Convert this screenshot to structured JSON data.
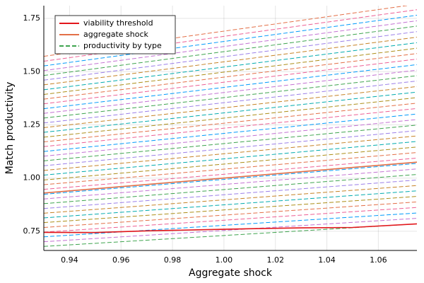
{
  "chart_data": {
    "type": "line",
    "x_label": "Aggregate shock",
    "y_label": "Match productivity",
    "xlim": [
      0.93,
      1.075
    ],
    "ylim": [
      0.66,
      1.81
    ],
    "xticks": [
      0.94,
      0.96,
      0.98,
      {
        "value": 1,
        "label": "1.00"
      },
      1.02,
      1.04,
      1.06
    ],
    "yticks": [
      0.75,
      {
        "value": 1,
        "label": "1.00"
      },
      1.25,
      {
        "value": 1.5,
        "label": "1.50"
      },
      1.75
    ],
    "grid": true,
    "legend": "top-left",
    "series": [
      {
        "name": "viability threshold",
        "color": "#e2161b",
        "style": "solid",
        "x": [
          0.93,
          0.95,
          0.97,
          0.99,
          1.01,
          1.03,
          1.05,
          1.075
        ],
        "values": [
          0.745,
          0.744,
          0.752,
          0.757,
          0.762,
          0.766,
          0.768,
          0.785
        ]
      },
      {
        "name": "aggregate shock",
        "color": "#e36f47",
        "style": "solid",
        "x": [
          0.93,
          1.075
        ],
        "values": [
          0.93,
          1.075
        ]
      },
      {
        "name": "productivity by type",
        "color": "#3ea44e",
        "style": "dashed",
        "colors": [
          "#3ea44e",
          "#c371d2",
          "#009afa",
          "#ed5e93",
          "#e36f47",
          "#ac8e18",
          "#00aaae",
          "#c68225",
          "#9b7fe8"
        ],
        "x": [
          0.93,
          1.075
        ],
        "lines": [
          [
            0.679,
            0.785
          ],
          [
            0.701,
            0.811
          ],
          [
            0.724,
            0.836
          ],
          [
            0.746,
            0.862
          ],
          [
            0.768,
            0.888
          ],
          [
            0.791,
            0.914
          ],
          [
            0.813,
            0.94
          ],
          [
            0.835,
            0.965
          ],
          [
            0.857,
            0.991
          ],
          [
            0.88,
            1.017
          ],
          [
            0.902,
            1.043
          ],
          [
            0.924,
            1.069
          ],
          [
            0.947,
            1.094
          ],
          [
            0.969,
            1.12
          ],
          [
            0.991,
            1.146
          ],
          [
            1.014,
            1.172
          ],
          [
            1.036,
            1.198
          ],
          [
            1.058,
            1.223
          ],
          [
            1.081,
            1.249
          ],
          [
            1.103,
            1.275
          ],
          [
            1.125,
            1.301
          ],
          [
            1.148,
            1.327
          ],
          [
            1.17,
            1.352
          ],
          [
            1.192,
            1.378
          ],
          [
            1.215,
            1.404
          ],
          [
            1.237,
            1.43
          ],
          [
            1.259,
            1.456
          ],
          [
            1.282,
            1.481
          ],
          [
            1.304,
            1.507
          ],
          [
            1.326,
            1.533
          ],
          [
            1.349,
            1.559
          ],
          [
            1.371,
            1.585
          ],
          [
            1.393,
            1.61
          ],
          [
            1.415,
            1.636
          ],
          [
            1.438,
            1.662
          ],
          [
            1.46,
            1.688
          ],
          [
            1.482,
            1.714
          ],
          [
            1.505,
            1.739
          ],
          [
            1.527,
            1.765
          ],
          [
            1.549,
            1.791
          ],
          [
            1.572,
            1.817
          ]
        ]
      }
    ]
  }
}
